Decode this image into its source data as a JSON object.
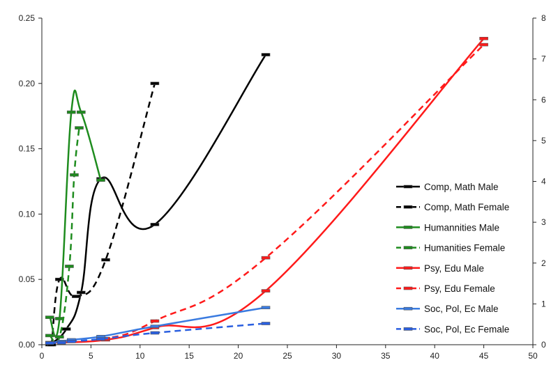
{
  "chart_data": {
    "type": "line",
    "x_axis": {
      "range": [
        0,
        50
      ],
      "ticks": [
        0,
        5,
        10,
        15,
        20,
        25,
        30,
        35,
        40,
        45,
        50
      ]
    },
    "y_left": {
      "range": [
        0,
        0.25
      ],
      "ticks": [
        "0.00",
        "0.05",
        "0.10",
        "0.15",
        "0.20",
        "0.25"
      ]
    },
    "y_right": {
      "range": [
        0,
        8
      ],
      "ticks": [
        0,
        1,
        2,
        3,
        4,
        5,
        6,
        7,
        8
      ]
    },
    "grid": false,
    "legend_position": "right",
    "series": [
      {
        "name": "Comp, Math Male",
        "color": "#000000",
        "dash": "solid",
        "axis": "left",
        "x": [
          0.8,
          2.5,
          4.0,
          6.0,
          11.5,
          22.8
        ],
        "y": [
          0.0,
          0.012,
          0.04,
          0.127,
          0.092,
          0.222
        ]
      },
      {
        "name": "Comp, Math  Female",
        "color": "#000000",
        "dash": "dashed",
        "axis": "left",
        "x": [
          1.0,
          1.8,
          3.5,
          6.5,
          11.5
        ],
        "y": [
          0.0,
          0.05,
          0.037,
          0.065,
          0.2
        ]
      },
      {
        "name": "Humannities Male",
        "color": "#1e8c1e",
        "dash": "solid",
        "axis": "left",
        "x": [
          0.8,
          1.8,
          3.0,
          4.0,
          6.0
        ],
        "y": [
          0.021,
          0.02,
          0.178,
          0.178,
          0.126
        ]
      },
      {
        "name": "Humanities  Female",
        "color": "#1e8c1e",
        "dash": "dashed",
        "axis": "left",
        "x": [
          0.8,
          1.8,
          2.8,
          3.3,
          3.8
        ],
        "y": [
          0.007,
          0.006,
          0.06,
          0.13,
          0.166
        ]
      },
      {
        "name": "Psy, Edu  Male",
        "color": "#ff1a1a",
        "dash": "solid",
        "axis": "right",
        "x": [
          0.8,
          6.5,
          11.5,
          22.8,
          45.0
        ],
        "y": [
          0.05,
          0.12,
          0.42,
          1.32,
          7.5
        ]
      },
      {
        "name": "Psy, Edu Female",
        "color": "#ff1a1a",
        "dash": "dashed",
        "axis": "right",
        "x": [
          0.8,
          6.5,
          11.5,
          22.8,
          45.0
        ],
        "y": [
          0.05,
          0.15,
          0.58,
          2.13,
          7.35
        ]
      },
      {
        "name": "Soc, Pol, Ec Male",
        "color": "#3a7be0",
        "dash": "solid",
        "axis": "right",
        "x": [
          0.8,
          2.0,
          3.0,
          6.0,
          11.5,
          22.8
        ],
        "y": [
          0.05,
          0.08,
          0.12,
          0.2,
          0.45,
          0.91
        ]
      },
      {
        "name": "Soc, Pol, Ec Female",
        "color": "#2a5fe0",
        "dash": "dashed",
        "axis": "right",
        "x": [
          0.8,
          2.0,
          3.0,
          6.0,
          11.5,
          22.8
        ],
        "y": [
          0.04,
          0.05,
          0.08,
          0.14,
          0.29,
          0.52
        ]
      }
    ]
  }
}
